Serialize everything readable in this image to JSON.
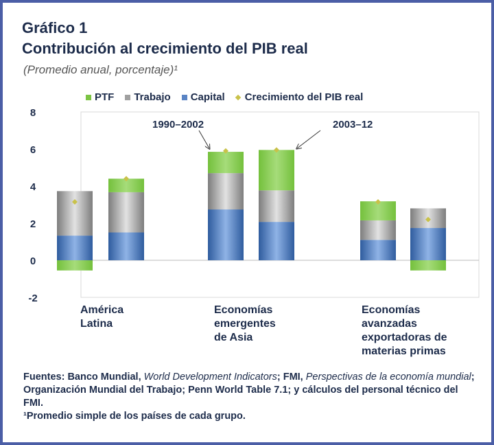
{
  "header": {
    "title": "Gráfico 1",
    "subtitle": "Contribución al crecimiento del PIB real",
    "note": "(Promedio anual, porcentaje)¹"
  },
  "chart_data": {
    "type": "bar",
    "stacked": true,
    "title": "Contribución al crecimiento del PIB real",
    "ylim": [
      -2,
      8
    ],
    "yticks": [
      "8",
      "6",
      "4",
      "2",
      "0",
      "-2"
    ],
    "ytick_values": [
      8,
      6,
      4,
      2,
      0,
      -2
    ],
    "grid": false,
    "legend_position": "top",
    "categories": [
      "América Latina",
      "Economías emergentes de Asia",
      "Economías avanzadas exportadoras de materias primas"
    ],
    "category_lines": [
      [
        "América",
        "Latina"
      ],
      [
        "Economías",
        "emergentes",
        "de Asia"
      ],
      [
        "Economías",
        "avanzadas",
        "exportadoras de",
        "materias primas"
      ]
    ],
    "periods": [
      "1990–2002",
      "2003–12"
    ],
    "series": [
      {
        "name": "Capital",
        "color": "#3d6db3",
        "values": [
          [
            1.33,
            1.5
          ],
          [
            2.74,
            2.07
          ],
          [
            1.1,
            1.74
          ]
        ]
      },
      {
        "name": "Trabajo",
        "color": "#8c8c8c",
        "values": [
          [
            2.4,
            2.17
          ],
          [
            1.96,
            1.7
          ],
          [
            1.05,
            1.06
          ]
        ]
      },
      {
        "name": "PTF",
        "color": "#7cc444",
        "values": [
          [
            -0.55,
            0.73
          ],
          [
            1.15,
            2.18
          ],
          [
            1.03,
            -0.55
          ]
        ]
      }
    ],
    "line_series": {
      "name": "Crecimiento del PIB real",
      "color": "#c9c24a",
      "values": [
        [
          3.15,
          4.4
        ],
        [
          5.9,
          5.95
        ],
        [
          3.15,
          2.2
        ]
      ]
    },
    "annotations": [
      "1990–2002",
      "2003–12"
    ]
  },
  "legend": [
    "PTF",
    "Trabajo",
    "Capital",
    "Crecimiento del PIB real"
  ],
  "footer": {
    "a": "Fuentes: Banco Mundial, ",
    "b": "World Development Indicators",
    "c": "; FMI, ",
    "d": "Perspectivas de la economía mundial",
    "e": "; Organización Mundial del Trabajo; Penn World Table 7.1; y cálculos del personal técnico del FMI.",
    "f": "¹Promedio simple de los países de cada grupo."
  }
}
